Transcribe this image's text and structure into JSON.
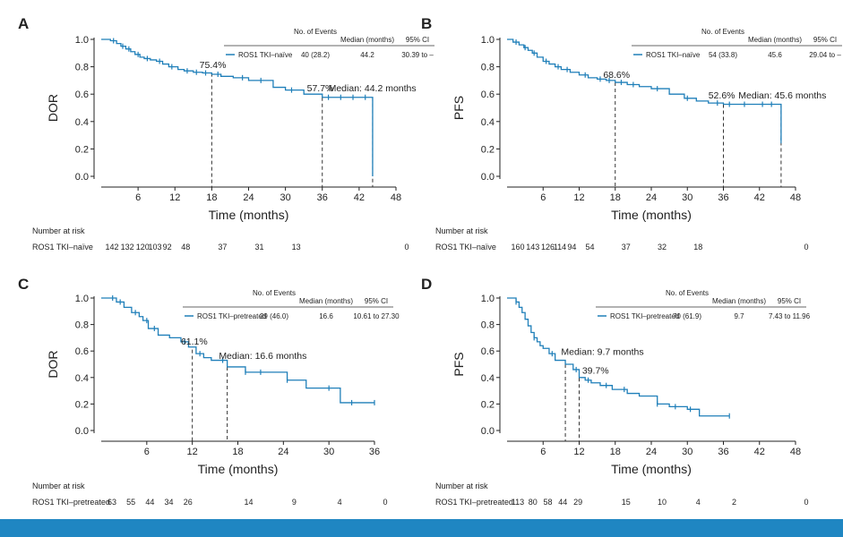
{
  "colors": {
    "curve": "#1f7fb9",
    "axis": "#222222",
    "footer": "#1f86c2"
  },
  "risk_title": "Number at risk",
  "chart_data": [
    {
      "type": "line",
      "id": "A",
      "panel_label": "A",
      "ylabel": "DOR",
      "xlabel": "Time (months)",
      "xlim": [
        0,
        48
      ],
      "ylim": [
        0,
        1
      ],
      "xticks": [
        6,
        12,
        18,
        24,
        30,
        36,
        42,
        48
      ],
      "yticks": [
        0.0,
        0.2,
        0.4,
        0.6,
        0.8,
        1.0
      ],
      "ytick_labels": [
        "0.0",
        "0.2",
        "0.4",
        "0.6",
        "0.8",
        "1.0"
      ],
      "series": [
        {
          "name": "ROS1 TKI–naïve",
          "x": [
            0,
            1.5,
            2.5,
            3.2,
            4.0,
            4.8,
            5.5,
            6.3,
            7.0,
            8.0,
            9.0,
            10.0,
            11.0,
            12.5,
            13.5,
            15.0,
            16.5,
            18.0,
            19.5,
            21.5,
            24.0,
            28.0,
            30.0,
            33.0,
            36.0,
            44.2
          ],
          "y": [
            1.0,
            0.99,
            0.97,
            0.95,
            0.93,
            0.91,
            0.89,
            0.87,
            0.86,
            0.85,
            0.84,
            0.82,
            0.8,
            0.78,
            0.77,
            0.76,
            0.755,
            0.745,
            0.73,
            0.72,
            0.7,
            0.65,
            0.63,
            0.6,
            0.577,
            0.0
          ],
          "censor_x": [
            2.0,
            3.5,
            4.5,
            6.0,
            7.5,
            9.5,
            11.5,
            14.0,
            15.5,
            17.0,
            19.0,
            23.0,
            26.0,
            31.0,
            37.0,
            39.0,
            41.0,
            43.0
          ]
        }
      ],
      "annotations": [
        {
          "text": "75.4%",
          "x": 16.0,
          "y": 0.79
        },
        {
          "text": "57.7%",
          "x": 33.5,
          "y": 0.62
        },
        {
          "text": "Median: 44.2 months",
          "x": 37.0,
          "y": 0.62
        }
      ],
      "dashed_lines": [
        {
          "x": 18,
          "y": 0.754
        },
        {
          "x": 36,
          "y": 0.577
        },
        {
          "x": 44.2,
          "y": 0.577
        }
      ],
      "legend": {
        "headers": [
          "No. of Events",
          "Median (months)",
          "95% CI"
        ],
        "row": [
          "ROS1 TKI–naïve",
          "40 (28.2)",
          "44.2",
          "30.39 to –"
        ]
      },
      "risk": {
        "label": "ROS1 TKI–naïve",
        "at": [
          0,
          2.5,
          5,
          7,
          9,
          12,
          18,
          24,
          30,
          36,
          48
        ],
        "counts": [
          "142",
          "132",
          "120",
          "103",
          "92",
          "48",
          "37",
          "31",
          "13",
          "",
          "0"
        ]
      }
    },
    {
      "type": "line",
      "id": "B",
      "panel_label": "B",
      "ylabel": "PFS",
      "xlabel": "Time (months)",
      "xlim": [
        0,
        48
      ],
      "ylim": [
        0,
        1
      ],
      "xticks": [
        6,
        12,
        18,
        24,
        30,
        36,
        42,
        48
      ],
      "yticks": [
        0.0,
        0.2,
        0.4,
        0.6,
        0.8,
        1.0
      ],
      "ytick_labels": [
        "0.0",
        "0.2",
        "0.4",
        "0.6",
        "0.8",
        "1.0"
      ],
      "series": [
        {
          "name": "ROS1 TKI–naïve",
          "x": [
            0,
            1.0,
            2.0,
            2.8,
            3.5,
            4.2,
            5.0,
            6.0,
            7.0,
            8.0,
            9.0,
            10.5,
            12.0,
            13.5,
            15.0,
            16.5,
            18.0,
            20.0,
            22.0,
            24.0,
            27.0,
            29.5,
            31.5,
            33.5,
            36.0,
            45.6
          ],
          "y": [
            1.0,
            0.98,
            0.96,
            0.94,
            0.92,
            0.9,
            0.87,
            0.84,
            0.82,
            0.8,
            0.78,
            0.76,
            0.74,
            0.72,
            0.71,
            0.7,
            0.686,
            0.67,
            0.655,
            0.64,
            0.6,
            0.57,
            0.55,
            0.535,
            0.526,
            0.26
          ],
          "censor_x": [
            1.5,
            3.0,
            4.5,
            6.5,
            8.5,
            10.0,
            13.0,
            15.5,
            17.0,
            19.0,
            21.0,
            25.0,
            30.0,
            35.0,
            37.0,
            39.5,
            42.5,
            44.0,
            45.6
          ]
        }
      ],
      "annotations": [
        {
          "text": "68.6%",
          "x": 16.0,
          "y": 0.72
        },
        {
          "text": "52.6%",
          "x": 33.5,
          "y": 0.57
        },
        {
          "text": "Median: 45.6 months",
          "x": 38.5,
          "y": 0.57
        }
      ],
      "dashed_lines": [
        {
          "x": 18,
          "y": 0.686
        },
        {
          "x": 36,
          "y": 0.526
        },
        {
          "x": 45.6,
          "y": 0.526
        }
      ],
      "legend": {
        "headers": [
          "No. of Events",
          "Median (months)",
          "95% CI"
        ],
        "row": [
          "ROS1 TKI–naïve",
          "54 (33.8)",
          "45.6",
          "29.04 to –"
        ]
      },
      "risk": {
        "label": "ROS1 TKI–naïve",
        "at": [
          0,
          2.5,
          5,
          7,
          9,
          12,
          18,
          24,
          30,
          36,
          48
        ],
        "counts": [
          "160",
          "143",
          "126",
          "114",
          "94",
          "54",
          "37",
          "32",
          "18",
          "",
          "0"
        ]
      }
    },
    {
      "type": "line",
      "id": "C",
      "panel_label": "C",
      "ylabel": "DOR",
      "xlabel": "Time (months)",
      "xlim": [
        0,
        36
      ],
      "ylim": [
        0,
        1
      ],
      "xticks": [
        6,
        12,
        18,
        24,
        30,
        36
      ],
      "yticks": [
        0.0,
        0.2,
        0.4,
        0.6,
        0.8,
        1.0
      ],
      "ytick_labels": [
        "0.0",
        "0.2",
        "0.4",
        "0.6",
        "0.8",
        "1.0"
      ],
      "series": [
        {
          "name": "ROS1 TKI–pretreated",
          "x": [
            0,
            2.0,
            3.0,
            4.0,
            5.0,
            5.5,
            6.2,
            7.5,
            9.0,
            10.5,
            11.5,
            12.5,
            13.5,
            14.5,
            16.6,
            19.0,
            24.5,
            27.0,
            31.5,
            36.0
          ],
          "y": [
            1.0,
            0.97,
            0.93,
            0.89,
            0.86,
            0.83,
            0.77,
            0.72,
            0.7,
            0.67,
            0.63,
            0.58,
            0.55,
            0.53,
            0.48,
            0.44,
            0.38,
            0.32,
            0.21,
            0.21
          ],
          "censor_x": [
            1.5,
            2.5,
            4.5,
            6.0,
            7.0,
            11.0,
            13.0,
            16.0,
            19.0,
            21.0,
            24.5,
            30.0,
            33.0,
            36.0
          ]
        }
      ],
      "annotations": [
        {
          "text": "61.1%",
          "x": 10.5,
          "y": 0.65
        },
        {
          "text": "Median: 16.6 months",
          "x": 15.5,
          "y": 0.54
        }
      ],
      "dashed_lines": [
        {
          "x": 12,
          "y": 0.611
        },
        {
          "x": 16.6,
          "y": 0.48
        }
      ],
      "legend": {
        "headers": [
          "No. of Events",
          "Median (months)",
          "95% CI"
        ],
        "row": [
          "ROS1 TKI–pretreated",
          "29 (46.0)",
          "16.6",
          "10.61 to 27.30"
        ]
      },
      "risk": {
        "label": "ROS1 TKI–pretreated",
        "at": [
          0,
          2.5,
          5,
          7.5,
          10,
          12,
          18,
          24,
          30,
          36
        ],
        "counts": [
          "63",
          "55",
          "44",
          "34",
          "26",
          "",
          "14",
          "9",
          "4",
          "0"
        ]
      }
    },
    {
      "type": "line",
      "id": "D",
      "panel_label": "D",
      "ylabel": "PFS",
      "xlabel": "Time (months)",
      "xlim": [
        0,
        48
      ],
      "ylim": [
        0,
        1
      ],
      "xticks": [
        6,
        12,
        18,
        24,
        30,
        36,
        42,
        48
      ],
      "yticks": [
        0.0,
        0.2,
        0.4,
        0.6,
        0.8,
        1.0
      ],
      "ytick_labels": [
        "0.0",
        "0.2",
        "0.4",
        "0.6",
        "0.8",
        "1.0"
      ],
      "series": [
        {
          "name": "ROS1 TKI–pretreated",
          "x": [
            0,
            1.5,
            2.0,
            2.5,
            3.0,
            3.5,
            4.0,
            4.5,
            5.0,
            5.5,
            6.0,
            7.0,
            8.0,
            9.7,
            11.0,
            12.0,
            13.0,
            14.0,
            15.5,
            17.5,
            20.0,
            22.0,
            25.0,
            27.0,
            30.0,
            32.0,
            37.0
          ],
          "y": [
            1.0,
            0.97,
            0.93,
            0.89,
            0.84,
            0.79,
            0.74,
            0.7,
            0.67,
            0.64,
            0.62,
            0.58,
            0.53,
            0.5,
            0.46,
            0.4,
            0.38,
            0.36,
            0.34,
            0.31,
            0.28,
            0.26,
            0.2,
            0.18,
            0.16,
            0.11,
            0.11
          ],
          "censor_x": [
            1.5,
            4.5,
            7.5,
            11.5,
            13.5,
            16.5,
            19.5,
            25.0,
            28.0,
            30.5,
            37.0
          ]
        }
      ],
      "annotations": [
        {
          "text": "Median: 9.7 months",
          "x": 9.0,
          "y": 0.57
        },
        {
          "text": "39.7%",
          "x": 12.5,
          "y": 0.43
        }
      ],
      "dashed_lines": [
        {
          "x": 9.7,
          "y": 0.5
        },
        {
          "x": 12,
          "y": 0.397
        }
      ],
      "legend": {
        "headers": [
          "No. of Events",
          "Median (months)",
          "95% CI"
        ],
        "row": [
          "ROS1 TKI–pretreated",
          "70 (61.9)",
          "9.7",
          "7.43 to 11.96"
        ]
      },
      "risk": {
        "label": "ROS1 TKI–pretreated",
        "at": [
          0,
          2.5,
          5,
          7.5,
          10,
          18,
          24,
          30,
          36,
          48
        ],
        "counts": [
          "113",
          "80",
          "58",
          "44",
          "29",
          "15",
          "10",
          "4",
          "2",
          "0"
        ]
      }
    }
  ]
}
